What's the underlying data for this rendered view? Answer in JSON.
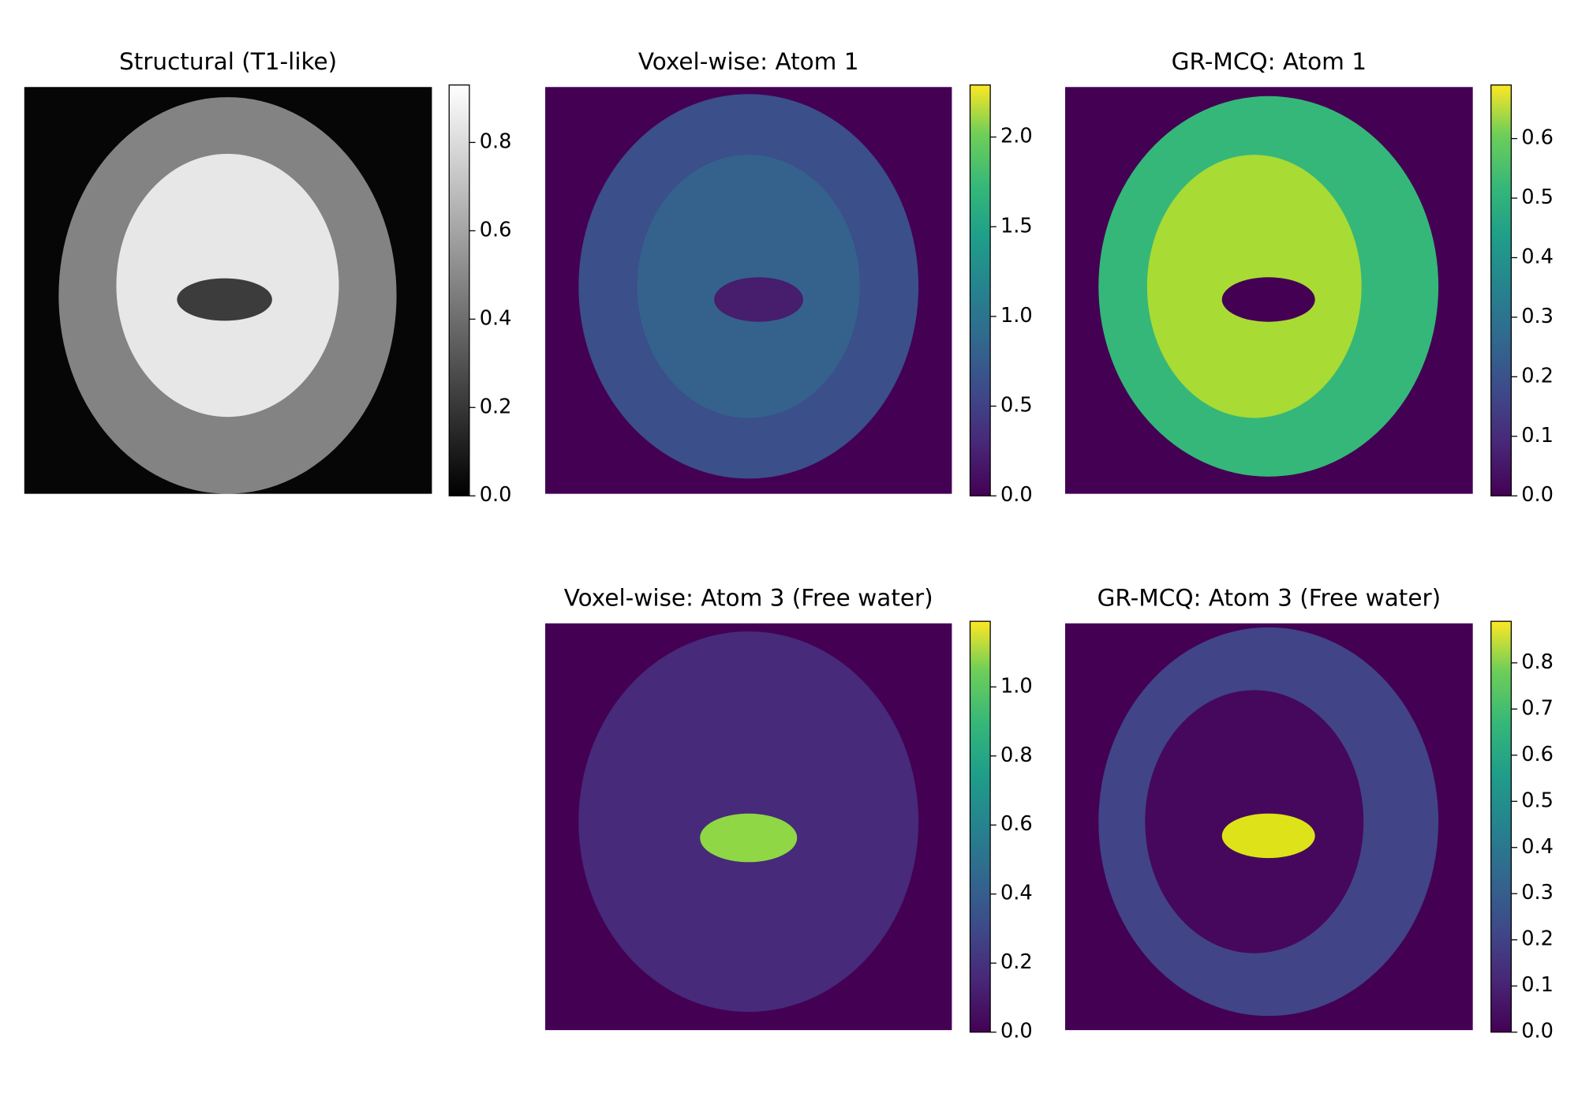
{
  "chart_data": [
    {
      "type": "heatmap",
      "title": "Structural (T1-like)",
      "colormap": "gray",
      "ylim": [
        0,
        0.93
      ],
      "yticks": [
        {
          "value": 0,
          "label": "0.0"
        },
        0.2,
        0.4,
        0.6,
        0.8
      ]
    },
    {
      "type": "heatmap",
      "title": "Voxel-wise: Atom 1",
      "colormap": "viridis",
      "ylim": [
        0,
        2.29
      ],
      "yticks": [
        {
          "value": 0,
          "label": "0.0"
        },
        0.5,
        {
          "value": 1,
          "label": "1.0"
        },
        1.5,
        {
          "value": 2,
          "label": "2.0"
        }
      ]
    },
    {
      "type": "heatmap",
      "title": "GR-MCQ: Atom 1",
      "colormap": "viridis",
      "ylim": [
        0,
        0.69
      ],
      "yticks": [
        {
          "value": 0,
          "label": "0.0"
        },
        0.1,
        0.2,
        0.3,
        0.4,
        0.5,
        0.6
      ]
    },
    {
      "type": "heatmap",
      "title": "Voxel-wise: Atom 3 (Free water)",
      "colormap": "viridis",
      "ylim": [
        0,
        1.19
      ],
      "yticks": [
        {
          "value": 0,
          "label": "0.0"
        },
        0.2,
        0.4,
        0.6,
        0.8,
        {
          "value": 1,
          "label": "1.0"
        }
      ]
    },
    {
      "type": "heatmap",
      "title": "GR-MCQ: Atom 3 (Free water)",
      "colormap": "viridis",
      "ylim": [
        0,
        0.89
      ],
      "yticks": [
        {
          "value": 0,
          "label": "0.0"
        },
        0.1,
        0.2,
        0.3,
        0.4,
        0.5,
        0.6,
        0.7,
        0.8
      ]
    }
  ]
}
